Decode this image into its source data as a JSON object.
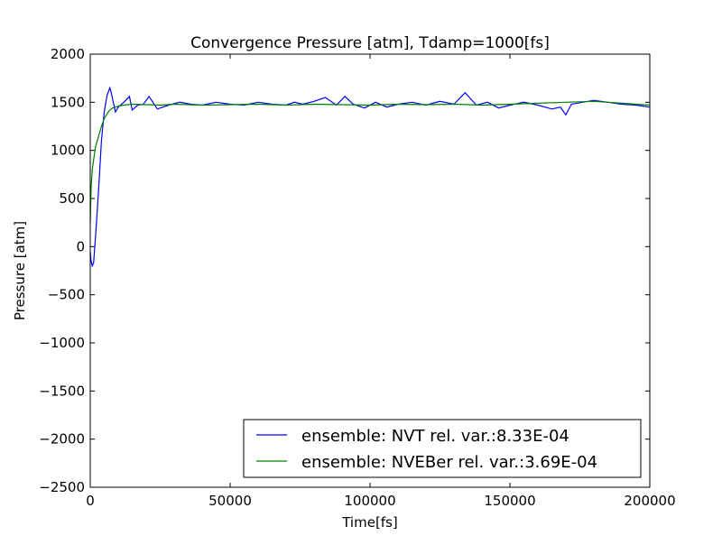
{
  "chart_data": {
    "type": "line",
    "title": "Convergence Pressure [atm], Tdamp=1000[fs]",
    "xlabel": "Time[fs]",
    "ylabel": "Pressure [atm]",
    "xlim": [
      0,
      200000
    ],
    "ylim": [
      -2500,
      2000
    ],
    "xticks": [
      0,
      50000,
      100000,
      150000,
      200000
    ],
    "xtick_labels": [
      "0",
      "50000",
      "100000",
      "150000",
      "200000"
    ],
    "yticks": [
      -2500,
      -2000,
      -1500,
      -1000,
      -500,
      0,
      500,
      1000,
      1500,
      2000
    ],
    "ytick_labels": [
      "−2500",
      "−2000",
      "−1500",
      "−1000",
      "−500",
      "0",
      "500",
      "1000",
      "1500",
      "2000"
    ],
    "grid": false,
    "legend_position": "lower-right",
    "series": [
      {
        "name": "ensemble: NVT rel. var.:8.33E-04",
        "color": "#0000ff",
        "x": [
          0,
          300,
          700,
          1200,
          2000,
          3000,
          4000,
          5000,
          6000,
          7000,
          7500,
          8000,
          9000,
          10000,
          12000,
          14000,
          15000,
          17000,
          19000,
          21000,
          24000,
          28000,
          32000,
          36000,
          40000,
          45000,
          50000,
          55000,
          60000,
          65000,
          70000,
          73000,
          76000,
          80000,
          84000,
          88000,
          91000,
          94000,
          98000,
          102000,
          106000,
          110000,
          115000,
          120000,
          125000,
          130000,
          134000,
          138000,
          142000,
          146000,
          150000,
          155000,
          160000,
          165000,
          168000,
          170000,
          172000,
          176000,
          180000,
          185000,
          190000,
          195000,
          200000
        ],
        "y": [
          -50,
          -150,
          -200,
          -170,
          150,
          600,
          1100,
          1400,
          1570,
          1650,
          1600,
          1530,
          1400,
          1450,
          1500,
          1560,
          1420,
          1470,
          1480,
          1560,
          1430,
          1470,
          1500,
          1480,
          1470,
          1500,
          1480,
          1470,
          1500,
          1480,
          1470,
          1500,
          1480,
          1510,
          1550,
          1470,
          1560,
          1480,
          1440,
          1500,
          1450,
          1480,
          1500,
          1470,
          1510,
          1480,
          1600,
          1470,
          1500,
          1440,
          1470,
          1500,
          1470,
          1430,
          1450,
          1370,
          1480,
          1500,
          1520,
          1500,
          1480,
          1470,
          1450
        ]
      },
      {
        "name": "ensemble: NVEBer rel. var.:3.69E-04",
        "color": "#008000",
        "x": [
          0,
          300,
          700,
          1200,
          2000,
          3000,
          4000,
          5000,
          6000,
          7000,
          8000,
          10000,
          12000,
          15000,
          20000,
          25000,
          30000,
          40000,
          50000,
          60000,
          70000,
          80000,
          90000,
          100000,
          110000,
          120000,
          130000,
          140000,
          150000,
          160000,
          170000,
          180000,
          190000,
          200000
        ],
        "y": [
          250,
          600,
          800,
          900,
          1050,
          1150,
          1250,
          1330,
          1380,
          1420,
          1440,
          1460,
          1470,
          1480,
          1475,
          1470,
          1480,
          1470,
          1475,
          1480,
          1470,
          1480,
          1475,
          1470,
          1480,
          1475,
          1480,
          1470,
          1480,
          1490,
          1500,
          1510,
          1490,
          1470
        ]
      }
    ]
  }
}
